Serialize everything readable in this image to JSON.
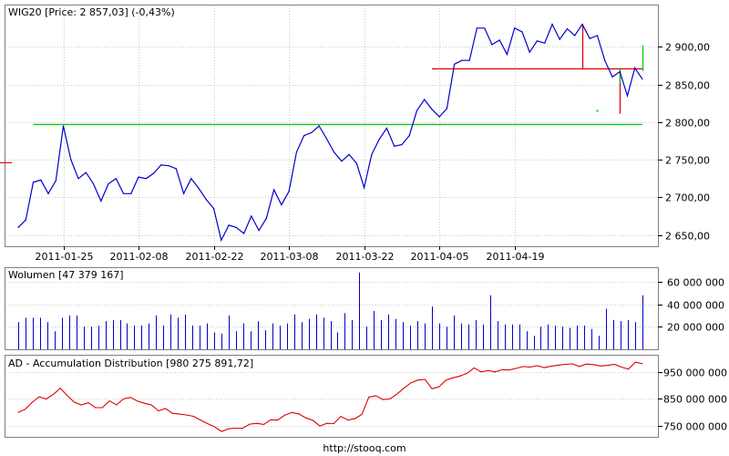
{
  "source_url": "http://stooq.com",
  "colors": {
    "price_line": "#0000cc",
    "signal_red": "#dd0000",
    "signal_green": "#00cc00",
    "ad_line": "#dd0000",
    "volume_bar": "#0000cc",
    "grid": "#cccccc"
  },
  "chart_data": [
    {
      "type": "line",
      "title": "WIG20 [Price: 2 857,03] (-0,43%)",
      "xlabel": "",
      "ylabel": "",
      "x_ticks": [
        "2011-01-25",
        "2011-02-08",
        "2011-02-22",
        "2011-03-08",
        "2011-03-22",
        "2011-04-05",
        "2011-04-19"
      ],
      "y_ticks": [
        "2 650,00",
        "2 700,00",
        "2 750,00",
        "2 800,00",
        "2 850,00",
        "2 900,00"
      ],
      "ylim": [
        2635,
        2955
      ],
      "series": [
        {
          "values": [
            2660,
            2670,
            2720,
            2723,
            2705,
            2722,
            2795,
            2750,
            2725,
            2733,
            2718,
            2695,
            2718,
            2725,
            2705,
            2705,
            2727,
            2725,
            2732,
            2743,
            2742,
            2738,
            2705,
            2725,
            2712,
            2697,
            2685,
            2643,
            2663,
            2660,
            2652,
            2675,
            2656,
            2672,
            2710,
            2690,
            2708,
            2760,
            2782,
            2786,
            2795,
            2778,
            2760,
            2748,
            2757,
            2745,
            2713,
            2757,
            2777,
            2792,
            2768,
            2770,
            2782,
            2815,
            2830,
            2817,
            2807,
            2818,
            2877,
            2882,
            2882,
            2925,
            2925,
            2903,
            2909,
            2890,
            2925,
            2920,
            2893,
            2908,
            2905,
            2930,
            2910,
            2924,
            2915,
            2930,
            2911,
            2915,
            2882,
            2860,
            2867,
            2835,
            2872,
            2857
          ]
        }
      ],
      "overlays": {
        "horizontal_levels": [
          {
            "color": "green",
            "y": 2797,
            "x_start_index": 2,
            "x_end_index": 83
          },
          {
            "color": "red",
            "y": 2871,
            "x_start_index": 55,
            "x_end_index": 83
          }
        ],
        "red_vertical_markers": [
          {
            "index": 75,
            "top": 2930,
            "bottom": 2871
          },
          {
            "index": 80,
            "top": 2871,
            "bottom": 2811
          }
        ],
        "green_marks": [
          {
            "index": 77,
            "y": 2815,
            "kind": "dot"
          },
          {
            "index": 80,
            "top": 2872,
            "bottom": 2852,
            "kind": "segment"
          },
          {
            "index": 83,
            "top": 2902,
            "bottom": 2868,
            "kind": "segment"
          }
        ]
      }
    },
    {
      "type": "bar",
      "title": "Wolumen [47 379 167]",
      "y_ticks": [
        "20 000 000",
        "40 000 000",
        "60 000 000"
      ],
      "ylim": [
        0,
        72000000
      ],
      "values": [
        24000000,
        28000000,
        28000000,
        28000000,
        24000000,
        16000000,
        28000000,
        30000000,
        30000000,
        20000000,
        20000000,
        21000000,
        25000000,
        26000000,
        26000000,
        23000000,
        21000000,
        21000000,
        23000000,
        30000000,
        21000000,
        31000000,
        28000000,
        31000000,
        21000000,
        21000000,
        23000000,
        15000000,
        14000000,
        30000000,
        16000000,
        23000000,
        16000000,
        25000000,
        17000000,
        23000000,
        21000000,
        23000000,
        31000000,
        24000000,
        27000000,
        31000000,
        28000000,
        25000000,
        15000000,
        32000000,
        26000000,
        68000000,
        20000000,
        34000000,
        26000000,
        31000000,
        27000000,
        24000000,
        21000000,
        25000000,
        23000000,
        38000000,
        23000000,
        20000000,
        30000000,
        23000000,
        22000000,
        26000000,
        22000000,
        48000000,
        25000000,
        22000000,
        22000000,
        22000000,
        16000000,
        12000000,
        20000000,
        22000000,
        21000000,
        20000000,
        19000000,
        21000000,
        21000000,
        18000000,
        12000000,
        36000000,
        26000000,
        25000000,
        26000000,
        24000000,
        48000000
      ]
    },
    {
      "type": "line",
      "title": "AD - Accumulation Distribution [980 275 891,72]",
      "y_ticks": [
        "750 000 000",
        "850 000 000",
        "950 000 000"
      ],
      "ylim": [
        710000000,
        1010000000
      ],
      "series": [
        {
          "values": [
            800000000,
            812000000,
            838000000,
            858000000,
            850000000,
            867000000,
            890000000,
            862000000,
            838000000,
            828000000,
            836000000,
            818000000,
            818000000,
            843000000,
            828000000,
            850000000,
            856000000,
            842000000,
            834000000,
            828000000,
            806000000,
            815000000,
            797000000,
            794000000,
            791000000,
            786000000,
            772000000,
            759000000,
            747000000,
            730000000,
            740000000,
            742000000,
            742000000,
            757000000,
            760000000,
            756000000,
            773000000,
            772000000,
            790000000,
            800000000,
            795000000,
            780000000,
            771000000,
            750000000,
            760000000,
            759000000,
            786000000,
            772000000,
            777000000,
            793000000,
            857000000,
            862000000,
            848000000,
            850000000,
            868000000,
            890000000,
            910000000,
            920000000,
            922000000,
            888000000,
            895000000,
            920000000,
            928000000,
            935000000,
            945000000,
            965000000,
            950000000,
            955000000,
            950000000,
            958000000,
            957000000,
            963000000,
            970000000,
            968000000,
            973000000,
            966000000,
            971000000,
            975000000,
            978000000,
            980000000,
            970000000,
            979000000,
            977000000,
            972000000,
            974000000,
            978000000,
            968000000,
            960000000,
            986000000,
            980000000
          ]
        }
      ]
    }
  ]
}
